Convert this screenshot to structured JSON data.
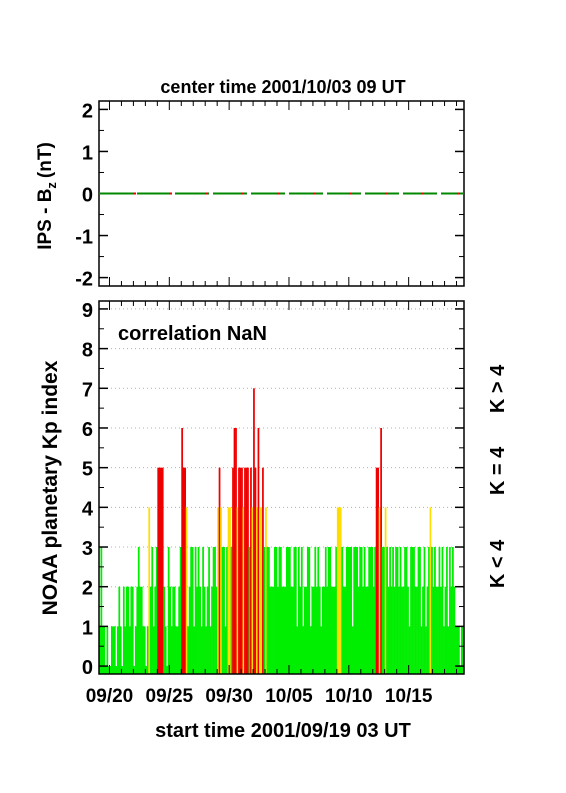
{
  "colors": {
    "k_lt_4": "#00ee00",
    "k_eq_4": "#ffdd00",
    "k_gt_4": "#ee0000",
    "bz_line_a": "#008800",
    "bz_line_b": "#ee0000",
    "axis": "#000000",
    "grid": "#b0b0b0"
  },
  "chart_data": [
    {
      "type": "line",
      "title": "center time 2001/10/03 09 UT",
      "ylabel": "IPS - B",
      "ylabel_subscript": "z",
      "ylabel_unit": "(nT)",
      "ylim": [
        -2.2,
        2.2
      ],
      "yticks": [
        "-2",
        "-1",
        "0",
        "1",
        "2"
      ],
      "x_range_days": [
        0,
        30.5
      ],
      "series": [
        {
          "x": [
            0,
            30.5
          ],
          "values": [
            0,
            0
          ]
        }
      ],
      "grid": false
    },
    {
      "type": "bar",
      "annotation": "correlation NaN",
      "ylabel": "NOAA planetary Kp index",
      "xlabel": "start time 2001/09/19 03 UT",
      "ylim": [
        -0.2,
        9.2
      ],
      "yticks": [
        "0",
        "1",
        "2",
        "3",
        "4",
        "5",
        "6",
        "7",
        "8",
        "9"
      ],
      "xticks": [
        "09/20",
        "09/25",
        "09/30",
        "10/05",
        "10/10",
        "10/15"
      ],
      "xtick_days": [
        0.875,
        5.875,
        10.875,
        15.875,
        20.875,
        25.875
      ],
      "x_range_days": [
        0,
        30.5
      ],
      "bin_width_days": 0.125,
      "grid": "horizontal dotted",
      "legend": [
        "K < 4",
        "K = 4",
        "K > 4"
      ],
      "legend_position": "right side, vertical",
      "kp_by_day": [
        [
          1,
          3,
          1,
          1,
          0,
          1,
          0,
          0
        ],
        [
          1,
          1,
          1,
          0,
          1,
          2,
          1,
          0
        ],
        [
          2,
          1,
          2,
          2,
          1,
          2,
          2,
          0
        ],
        [
          1,
          2,
          3,
          2,
          2,
          1,
          1,
          0
        ],
        [
          1,
          4,
          2,
          3,
          1,
          2,
          3,
          5
        ],
        [
          5,
          5,
          5,
          2,
          1,
          0,
          3,
          2
        ],
        [
          1,
          2,
          2,
          1,
          1,
          2,
          3,
          6
        ],
        [
          5,
          5,
          4,
          1,
          2,
          3,
          3,
          1
        ],
        [
          3,
          2,
          3,
          2,
          1,
          3,
          2,
          1
        ],
        [
          2,
          3,
          1,
          2,
          3,
          3,
          2,
          4
        ],
        [
          5,
          4,
          3,
          3,
          1,
          3,
          4,
          4
        ],
        [
          3,
          5,
          6,
          6,
          4,
          5,
          5,
          5
        ],
        [
          4,
          5,
          5,
          5,
          3,
          5,
          4,
          7
        ],
        [
          5,
          4,
          6,
          4,
          4,
          5,
          3,
          4
        ],
        [
          3,
          3,
          2,
          2,
          2,
          3,
          3,
          2
        ],
        [
          3,
          3,
          2,
          2,
          2,
          3,
          3,
          3
        ],
        [
          2,
          2,
          3,
          3,
          1,
          3,
          2,
          3
        ],
        [
          1,
          2,
          2,
          3,
          3,
          1,
          2,
          2
        ],
        [
          3,
          2,
          3,
          2,
          1,
          2,
          2,
          3
        ],
        [
          2,
          3,
          3,
          2,
          2,
          2,
          3,
          4
        ],
        [
          4,
          4,
          3,
          2,
          2,
          3,
          3,
          3
        ],
        [
          3,
          1,
          3,
          3,
          3,
          2,
          3,
          3
        ],
        [
          2,
          3,
          2,
          2,
          3,
          3,
          3,
          2
        ],
        [
          3,
          5,
          5,
          4,
          6,
          3,
          3,
          4
        ],
        [
          3,
          2,
          3,
          2,
          3,
          2,
          3,
          3
        ],
        [
          2,
          3,
          2,
          2,
          3,
          3,
          2,
          1
        ],
        [
          3,
          3,
          3,
          2,
          2,
          3,
          3,
          1
        ],
        [
          2,
          3,
          1,
          2,
          3,
          4,
          3,
          2
        ],
        [
          3,
          2,
          2,
          3,
          2,
          3,
          1,
          2
        ],
        [
          3,
          1,
          3,
          2,
          3,
          2,
          1,
          1
        ],
        [
          1,
          0,
          1,
          1
        ]
      ]
    }
  ]
}
